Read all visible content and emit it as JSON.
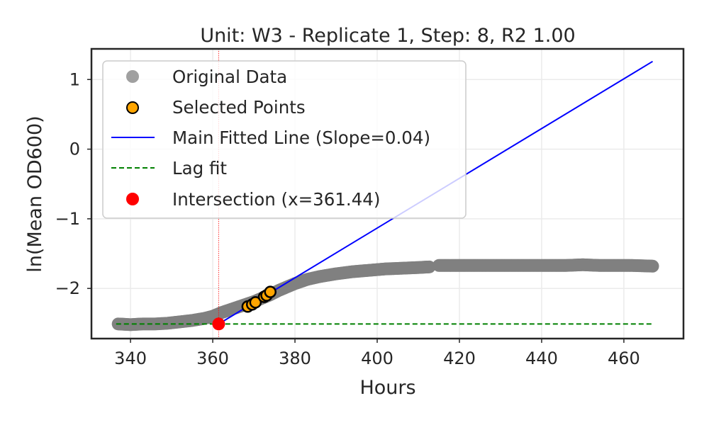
{
  "chart_data": {
    "type": "scatter",
    "title": "Unit: W3 - Replicate 1, Step: 8, R2 1.00",
    "xlabel": "Hours",
    "ylabel": "ln(Mean OD600)",
    "xlim": [
      330.5,
      474.5
    ],
    "ylim": [
      -2.72,
      1.44
    ],
    "xticks": [
      340,
      360,
      380,
      400,
      420,
      440,
      460
    ],
    "yticks": [
      1,
      0,
      -1,
      -2
    ],
    "ytick_labels": [
      "1",
      "0",
      "−1",
      "−2"
    ],
    "grid": true,
    "legend_position": "upper-left",
    "colors": {
      "original": "#808080",
      "selected": "#FFA500",
      "fit_line": "#0000FF",
      "lag_line": "#008000",
      "intersection": "#FF0000",
      "vline": "#FF0000"
    },
    "series": [
      {
        "name": "Original Data",
        "kind": "scatter",
        "x": [
          337,
          340,
          343,
          346,
          349,
          352,
          355,
          358,
          360,
          362,
          364,
          366,
          368,
          370,
          372,
          374,
          376,
          378,
          380,
          383,
          386,
          390,
          394,
          398,
          402,
          406,
          410,
          413,
          415,
          418,
          422,
          426,
          430,
          434,
          438,
          442,
          446,
          450,
          454,
          458,
          462,
          467
        ],
        "y": [
          -2.51,
          -2.52,
          -2.51,
          -2.51,
          -2.5,
          -2.48,
          -2.46,
          -2.43,
          -2.4,
          -2.35,
          -2.31,
          -2.27,
          -2.23,
          -2.19,
          -2.14,
          -2.09,
          -2.03,
          -1.98,
          -1.93,
          -1.87,
          -1.83,
          -1.79,
          -1.76,
          -1.74,
          -1.72,
          -1.71,
          -1.7,
          -1.69,
          -1.67,
          -1.67,
          -1.67,
          -1.67,
          -1.67,
          -1.67,
          -1.67,
          -1.67,
          -1.67,
          -1.66,
          -1.67,
          -1.67,
          -1.67,
          -1.68
        ]
      },
      {
        "name": "Selected Points",
        "kind": "scatter",
        "x": [
          368.5,
          369.6,
          370.4,
          372.5,
          373.1,
          374.0
        ],
        "y": [
          -2.26,
          -2.23,
          -2.2,
          -2.12,
          -2.1,
          -2.05
        ]
      },
      {
        "name": "Main Fitted Line (Slope=0.04)",
        "kind": "line",
        "x": [
          361.44,
          467
        ],
        "y": [
          -2.51,
          1.26
        ]
      },
      {
        "name": "Lag fit",
        "kind": "dashed-line",
        "x": [
          336.5,
          467
        ],
        "y": [
          -2.51,
          -2.51
        ]
      },
      {
        "name": "Intersection (x=361.44)",
        "kind": "point",
        "x": [
          361.44
        ],
        "y": [
          -2.51
        ]
      }
    ],
    "vline_x": 361.44
  }
}
